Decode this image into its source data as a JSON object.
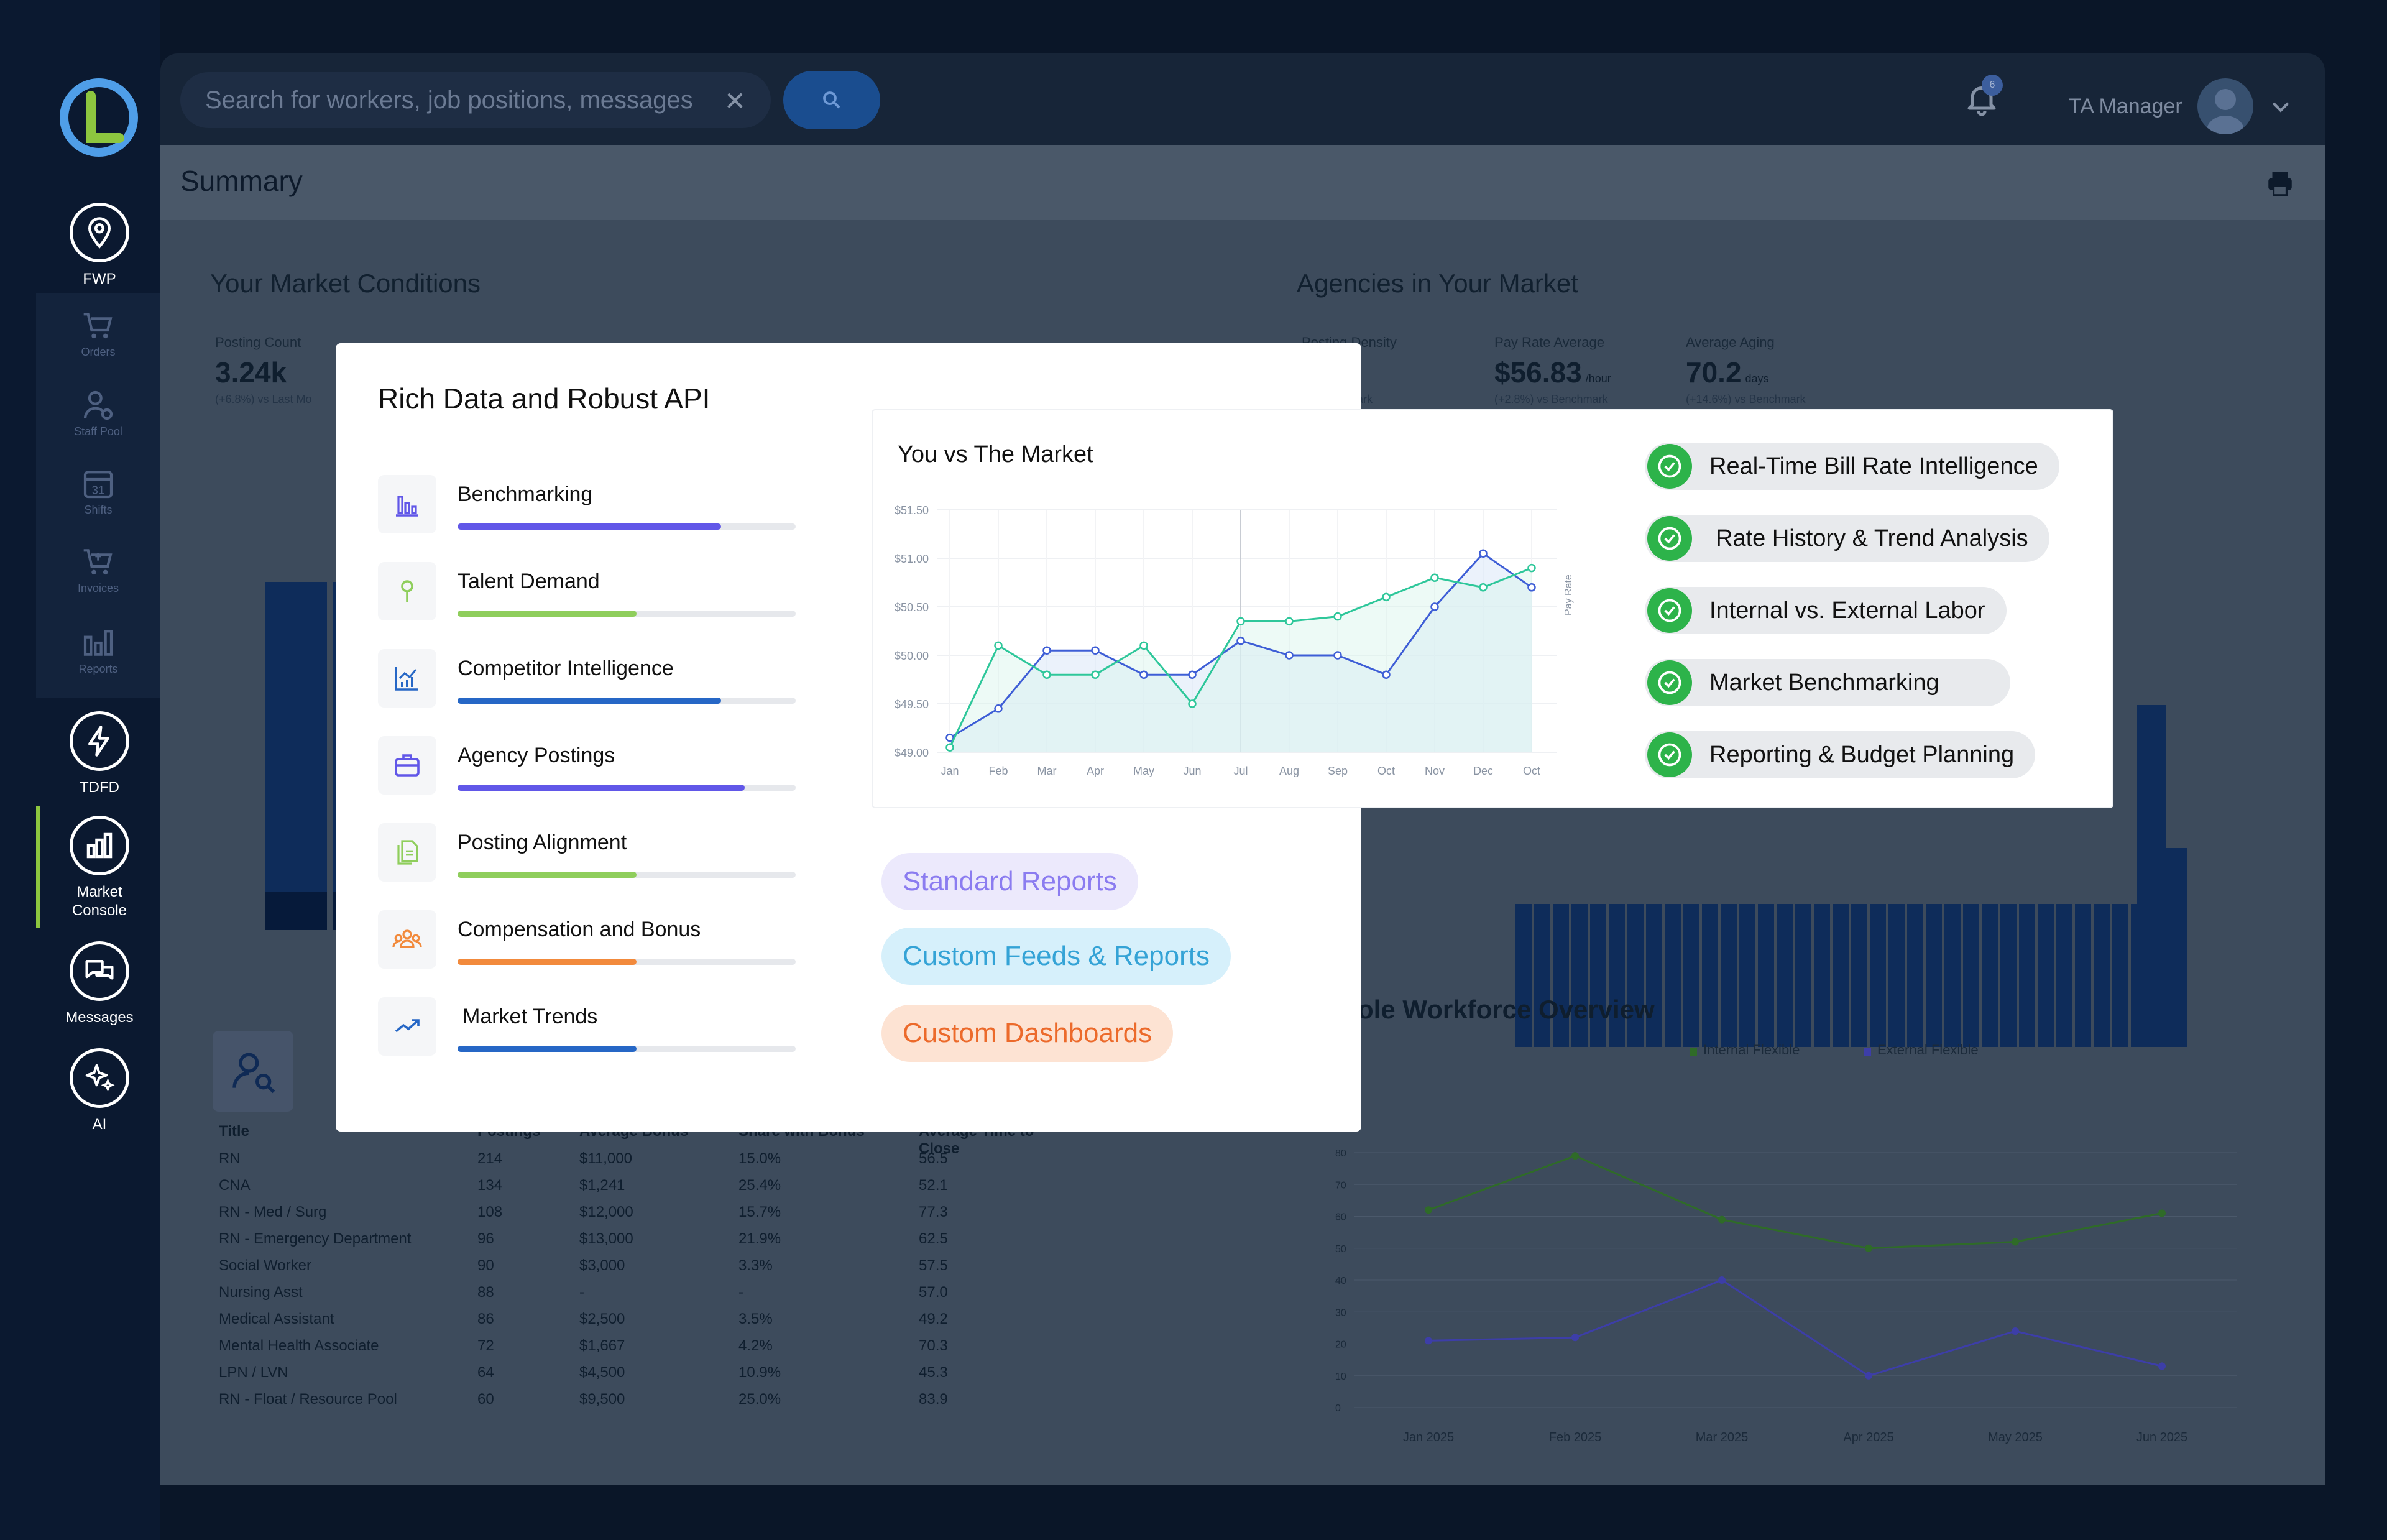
{
  "sidebar": {
    "items": [
      {
        "label": "FWP",
        "icon": "location-pin-icon"
      },
      {
        "label": "TDFD",
        "icon": "lightning-icon"
      },
      {
        "label": "Market Console",
        "icon": "bar-chart-icon"
      },
      {
        "label": "Messages",
        "icon": "chat-bubbles-icon"
      },
      {
        "label": "AI",
        "icon": "sparkles-icon"
      }
    ],
    "sub_items": [
      {
        "label": "Orders",
        "icon": "cart-icon"
      },
      {
        "label": "Staff Pool",
        "icon": "people-icon"
      },
      {
        "label": "Shifts",
        "icon": "calendar-icon"
      },
      {
        "label": "Invoices",
        "icon": "invoice-cart-icon"
      },
      {
        "label": "Reports",
        "icon": "reports-icon"
      }
    ],
    "calendar_day": "31"
  },
  "topbar": {
    "search_placeholder": "Search for workers, job positions, messages",
    "notification_count": "6",
    "user_name": "TA Manager"
  },
  "dashboard": {
    "page_title": "Summary",
    "market_conditions_title": "Your Market Conditions",
    "agencies_title": "Agencies in Your Market",
    "posting_count": {
      "label": "Posting Count",
      "value": "3.24k",
      "sub": "(+6.8%) vs Last Mo"
    },
    "posting_density": {
      "label": "Posting Density",
      "value": "%",
      "sub": "vs Benchmark"
    },
    "pay_rate": {
      "label": "Pay Rate Average",
      "value": "$56.83",
      "unit": "/hour",
      "sub": "(+2.8%) vs Benchmark"
    },
    "aging": {
      "label": "Average Aging",
      "value": "70.2",
      "unit": "days",
      "sub": "(+14.6%) vs Benchmark"
    },
    "table": {
      "headers": [
        "Title",
        "Postings",
        "Average Bonus",
        "Share with Bonus",
        "Average Time to Close"
      ],
      "rows": [
        [
          "RN",
          "214",
          "$11,000",
          "15.0%",
          "56.5"
        ],
        [
          "CNA",
          "134",
          "$1,241",
          "25.4%",
          "52.1"
        ],
        [
          "RN - Med / Surg",
          "108",
          "$12,000",
          "15.7%",
          "77.3"
        ],
        [
          "RN - Emergency Department",
          "96",
          "$13,000",
          "21.9%",
          "62.5"
        ],
        [
          "Social Worker",
          "90",
          "$3,000",
          "3.3%",
          "57.5"
        ],
        [
          "Nursing Asst",
          "88",
          "-",
          "-",
          "57.0"
        ],
        [
          "Medical Assistant",
          "86",
          "$2,500",
          "3.5%",
          "49.2"
        ],
        [
          "Mental Health Associate",
          "72",
          "$1,667",
          "4.2%",
          "70.3"
        ],
        [
          "LPN / LVN",
          "64",
          "$4,500",
          "10.9%",
          "45.3"
        ],
        [
          "RN - Float / Resource Pool",
          "60",
          "$9,500",
          "25.0%",
          "83.9"
        ]
      ]
    },
    "workforce_title": "ole Workforce Overview",
    "workforce_legend": [
      "Internal Flexible",
      "External Flexible"
    ],
    "workforce_months": [
      "Jan 2025",
      "Feb 2025",
      "Mar 2025",
      "Apr 2025",
      "May 2025",
      "Jun 2025"
    ],
    "workforce_internal": [
      62,
      79,
      59,
      50,
      52,
      61
    ],
    "workforce_external": [
      21,
      22,
      40,
      10,
      24,
      13
    ]
  },
  "card": {
    "title": "Rich Data and Robust API",
    "features": [
      {
        "label": "Benchmarking",
        "icon": "bar-chart-icon",
        "progress": 0.78,
        "color": "#6157e8"
      },
      {
        "label": "Talent Demand",
        "icon": "pin-icon",
        "progress": 0.53,
        "color": "#8fce5c"
      },
      {
        "label": "Competitor Intelligence",
        "icon": "column-chart-icon",
        "progress": 0.78,
        "color": "#2667c6"
      },
      {
        "label": "Agency Postings",
        "icon": "briefcase-icon",
        "progress": 0.85,
        "color": "#6157e8"
      },
      {
        "label": "Posting Alignment",
        "icon": "document-icon",
        "progress": 0.53,
        "color": "#8fce5c"
      },
      {
        "label": "Compensation and Bonus",
        "icon": "team-icon",
        "progress": 0.53,
        "color": "#f28a3c"
      },
      {
        "label": "Market Trends",
        "icon": "trend-icon",
        "progress": 0.53,
        "color": "#2667c6"
      }
    ],
    "pills": [
      {
        "label": "Standard Reports",
        "bg": "#ece9fc",
        "fg": "#8b7cf0"
      },
      {
        "label": "Custom Feeds & Reports",
        "bg": "#d6f0fb",
        "fg": "#34a3d6"
      },
      {
        "label": "Custom Dashboards",
        "bg": "#fde3d3",
        "fg": "#ec6a2b"
      }
    ]
  },
  "chart_card": {
    "checklist": [
      "Real-Time Bill Rate Intelligence",
      "Rate History & Trend Analysis",
      "Internal vs. External Labor",
      "Market Benchmarking",
      "Reporting & Budget Planning"
    ]
  },
  "chart_data": {
    "type": "line",
    "title": "You vs The Market",
    "xlabel": "",
    "ylabel": "Pay Rate",
    "categories": [
      "Jan",
      "Feb",
      "Mar",
      "Apr",
      "May",
      "Jun",
      "Jul",
      "Aug",
      "Sep",
      "Oct",
      "Nov",
      "Dec",
      "Oct"
    ],
    "y_ticks": [
      "$49.00",
      "$49.50",
      "$50.00",
      "$50.50",
      "$51.00",
      "$51.50"
    ],
    "ylim": [
      49.0,
      51.5
    ],
    "series": [
      {
        "name": "You",
        "color": "#3e5ed6",
        "values": [
          49.15,
          49.45,
          50.05,
          50.05,
          49.8,
          49.8,
          50.15,
          50.0,
          50.0,
          49.8,
          50.5,
          51.05,
          50.7
        ]
      },
      {
        "name": "Market",
        "color": "#2ec79a",
        "values": [
          49.05,
          50.1,
          49.8,
          49.8,
          50.1,
          49.5,
          50.35,
          50.35,
          50.4,
          50.6,
          50.8,
          50.7,
          50.9
        ]
      }
    ]
  }
}
